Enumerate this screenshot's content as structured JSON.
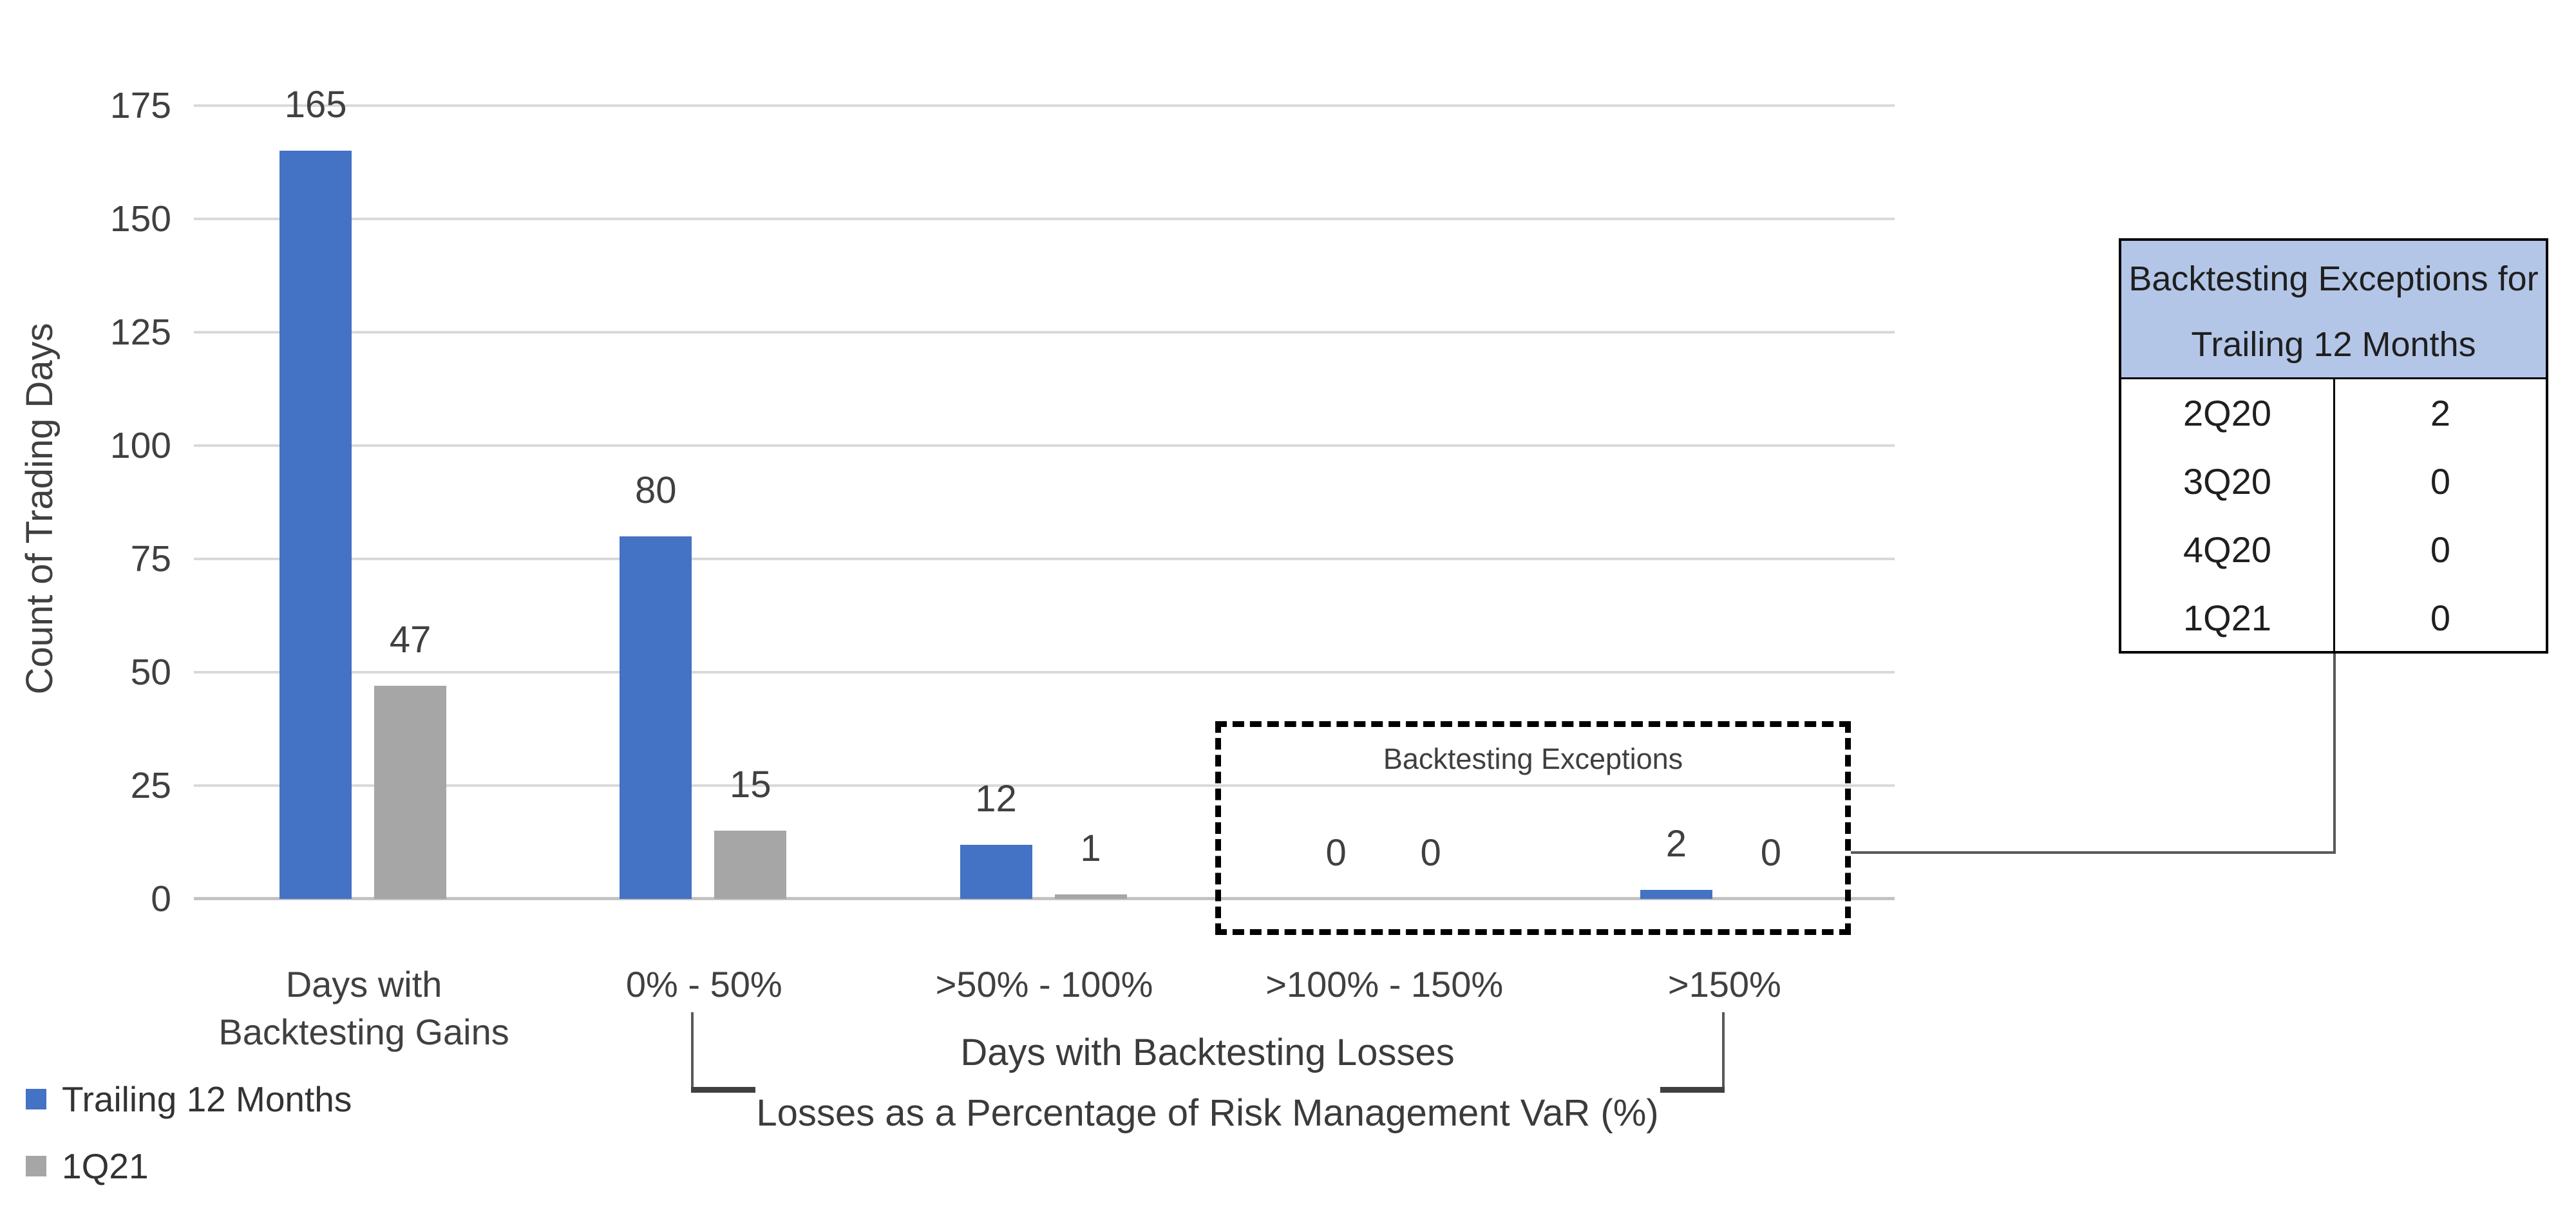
{
  "chart_data": {
    "type": "bar",
    "title": "",
    "categories": [
      "Days with\nBacktesting Gains",
      "0% - 50%",
      ">50% - 100%",
      ">100% - 150%",
      ">150%"
    ],
    "series": [
      {
        "name": "Trailing 12 Months",
        "color": "#4472C4",
        "values": [
          165,
          80,
          12,
          0,
          2
        ]
      },
      {
        "name": "1Q21",
        "color": "#A6A6A6",
        "values": [
          47,
          15,
          1,
          0,
          0
        ]
      }
    ],
    "ylabel": "Count of Trading Days",
    "xlabel": "",
    "ylim": [
      0,
      175
    ],
    "yticks": [
      0,
      25,
      50,
      75,
      100,
      125,
      150,
      175
    ],
    "grid": true,
    "legend_position": "bottom-left",
    "xlabel_line1": "Days with Backtesting Losses",
    "xlabel_line2": "Losses as a Percentage of Risk Management VaR (%)"
  },
  "annotation_box": {
    "label": "Backtesting Exceptions"
  },
  "exceptions_table": {
    "header_line1": "Backtesting Exceptions for",
    "header_line2": "Trailing 12 Months",
    "rows": [
      [
        "2Q20",
        "2"
      ],
      [
        "3Q20",
        "0"
      ],
      [
        "4Q20",
        "0"
      ],
      [
        "1Q21",
        "0"
      ]
    ]
  },
  "colors": {
    "series_blue": "#4472C4",
    "series_gray": "#A6A6A6",
    "gridline": "#D9D9D9",
    "axis_line": "#C3C3C3",
    "table_header_bg": "#B4C6E7",
    "dashed_box_border": "#000000",
    "connector_line": "#595959",
    "text": "#404040"
  }
}
